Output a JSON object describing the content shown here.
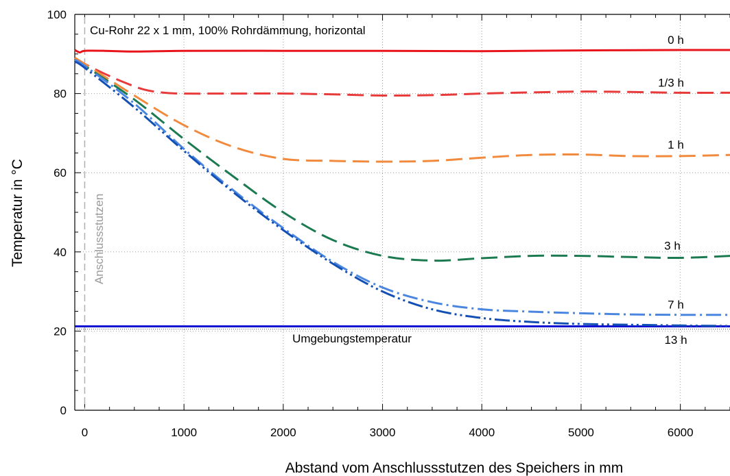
{
  "chart_data": {
    "type": "line",
    "title": "",
    "xlabel": "Abstand vom Anschlussstutzen des Speichers in mm",
    "ylabel": "Temperatur in °C",
    "xlim": [
      -100,
      6500
    ],
    "ylim": [
      0,
      100
    ],
    "x_ticks": [
      0,
      1000,
      2000,
      3000,
      4000,
      5000,
      6000
    ],
    "y_ticks": [
      0,
      20,
      40,
      60,
      80,
      100
    ],
    "grid": true,
    "annotation": "Cu-Rohr 22 x 1 mm, 100% Rohrdämmung, horizontal",
    "vertical_marker": {
      "x": 0,
      "label": "Anschlussstutzen"
    },
    "reference_line": {
      "y": 21.2,
      "label": "Umgebungstemperatur",
      "color": "#1010d0"
    },
    "series": [
      {
        "name": "0 h",
        "color": "#e8141c",
        "style": "solid",
        "x": [
          -100,
          -50,
          0,
          200,
          500,
          1000,
          2000,
          3000,
          4000,
          5000,
          6000,
          6500
        ],
        "y": [
          91.0,
          90.4,
          90.8,
          90.8,
          90.6,
          90.8,
          90.8,
          90.8,
          90.7,
          90.9,
          91.0,
          91.0
        ]
      },
      {
        "name": "1/3 h",
        "color": "#e83a3a",
        "style": "dash",
        "x": [
          -100,
          0,
          200,
          400,
          600,
          800,
          1000,
          1500,
          2000,
          2500,
          3000,
          3500,
          4000,
          4500,
          5000,
          5500,
          6000,
          6500
        ],
        "y": [
          89.0,
          87.5,
          85.0,
          82.8,
          81.0,
          80.2,
          80.0,
          80.0,
          80.0,
          79.8,
          79.5,
          79.6,
          80.0,
          80.3,
          80.5,
          80.4,
          80.2,
          80.2
        ]
      },
      {
        "name": "1 h",
        "color": "#f28a3e",
        "style": "dash",
        "x": [
          -100,
          0,
          500,
          1000,
          1500,
          2000,
          2500,
          3000,
          3500,
          4000,
          4500,
          5000,
          5500,
          6000,
          6500
        ],
        "y": [
          89.0,
          87.5,
          79.5,
          72.0,
          66.5,
          63.5,
          63.0,
          62.8,
          63.0,
          63.8,
          64.5,
          64.6,
          64.2,
          64.2,
          64.5
        ]
      },
      {
        "name": "3 h",
        "color": "#1c7a50",
        "style": "dash",
        "x": [
          -100,
          0,
          500,
          1000,
          1500,
          2000,
          2500,
          3000,
          3500,
          4000,
          4500,
          5000,
          5500,
          6000,
          6500
        ],
        "y": [
          88.5,
          87.0,
          78.5,
          68.5,
          59.0,
          50.0,
          43.0,
          39.0,
          37.8,
          38.4,
          39.0,
          39.0,
          38.7,
          38.5,
          39.0
        ]
      },
      {
        "name": "7 h",
        "color": "#4a86e0",
        "style": "dashdot",
        "x": [
          -100,
          0,
          500,
          1000,
          1500,
          2000,
          2500,
          3000,
          3500,
          4000,
          4500,
          5000,
          5500,
          6000,
          6500
        ],
        "y": [
          88.5,
          87.0,
          77.5,
          66.0,
          55.5,
          46.0,
          37.5,
          31.0,
          27.3,
          25.5,
          24.9,
          24.5,
          24.2,
          24.1,
          24.1
        ]
      },
      {
        "name": "13 h",
        "color": "#1450b4",
        "style": "dashdotdot",
        "x": [
          -100,
          0,
          500,
          1000,
          1500,
          2000,
          2500,
          3000,
          3500,
          4000,
          4500,
          5000,
          5500,
          6000,
          6500
        ],
        "y": [
          88.0,
          86.5,
          76.5,
          65.5,
          55.0,
          45.5,
          37.0,
          30.0,
          25.5,
          23.3,
          22.3,
          21.8,
          21.6,
          21.4,
          21.3
        ]
      }
    ]
  }
}
